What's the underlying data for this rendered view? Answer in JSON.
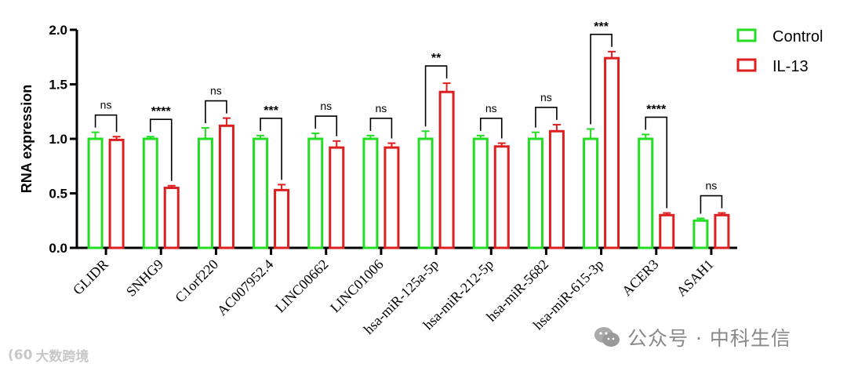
{
  "chart_data": {
    "type": "bar",
    "ylabel": "RNA expression",
    "xlabel": "",
    "ylim": [
      0,
      2.0
    ],
    "yticks": [
      "0.0",
      "0.5",
      "1.0",
      "1.5",
      "2.0"
    ],
    "categories": [
      "GLIDR",
      "SNHG9",
      "C1orf220",
      "AC007952.4",
      "LINC00662",
      "LINC01006",
      "hsa-miR-125a-5p",
      "hsa-miR-212-5p",
      "hsa-miR-5682",
      "hsa-miR-615-3p",
      "ACER3",
      "ASAH1"
    ],
    "series": [
      {
        "name": "Control",
        "color": "#22dd22",
        "values": [
          1.0,
          1.0,
          1.0,
          1.0,
          1.0,
          1.0,
          1.0,
          1.0,
          1.0,
          1.0,
          1.0,
          0.25
        ],
        "errors": [
          0.06,
          0.02,
          0.1,
          0.03,
          0.05,
          0.03,
          0.07,
          0.03,
          0.06,
          0.09,
          0.04,
          0.02
        ]
      },
      {
        "name": "IL-13",
        "color": "#dd1f1f",
        "values": [
          0.99,
          0.55,
          1.12,
          0.53,
          0.92,
          0.92,
          1.43,
          0.93,
          1.07,
          1.74,
          0.3,
          0.3
        ],
        "errors": [
          0.03,
          0.02,
          0.07,
          0.05,
          0.06,
          0.04,
          0.08,
          0.03,
          0.06,
          0.06,
          0.02,
          0.02
        ]
      }
    ],
    "significance": [
      "ns",
      "****",
      "ns",
      "***",
      "ns",
      "ns",
      "**",
      "ns",
      "ns",
      "***",
      "****",
      "ns"
    ],
    "legend": {
      "position": "top-right",
      "entries": [
        "Control",
        "IL-13"
      ]
    }
  },
  "watermarks": {
    "right": "公众号 · 中科生信",
    "left": "大数跨境",
    "left_logo_text": "(60"
  },
  "colors": {
    "axis": "#000000",
    "control": "#22dd22",
    "il13": "#dd1f1f"
  }
}
